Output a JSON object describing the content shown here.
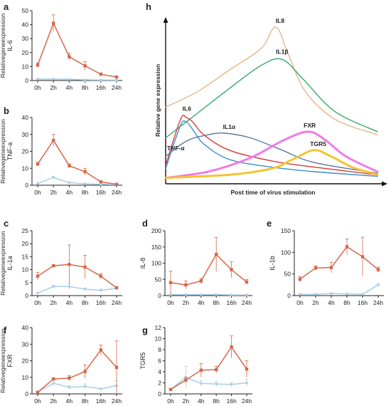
{
  "colors": {
    "treated": "#d4694a",
    "control": "#a9cfe6",
    "axis": "#222222",
    "IL8": "#e8b48a",
    "IL1b": "#3aaa6a",
    "IL6": "#d63b36",
    "TNFa": "#3e8fc4",
    "IL1a": "#5a78a8",
    "FXR": "#f07be6",
    "TGR5": "#f4c430"
  },
  "chart_data": [
    {
      "id": "a",
      "type": "line",
      "panel_label": "a",
      "ylabel": "IL-6",
      "ylabel2": "Relativegeneexpression",
      "categories": [
        "0h",
        "2h",
        "4h",
        "8h",
        "16h",
        "24h"
      ],
      "ylim": [
        0,
        50
      ],
      "yticks": [
        0,
        10,
        20,
        30,
        40,
        50
      ],
      "series": [
        {
          "role": "treated",
          "values": [
            11,
            41,
            17,
            10.5,
            4.5,
            2.5
          ],
          "errors": [
            1.5,
            6,
            2.5,
            3,
            1,
            0.6
          ]
        },
        {
          "role": "control",
          "values": [
            1,
            1,
            0.8,
            0.5,
            0.4,
            0.3
          ],
          "errors": [
            0.3,
            0.3,
            0.3,
            0.2,
            0.2,
            0.1
          ]
        }
      ]
    },
    {
      "id": "b",
      "type": "line",
      "panel_label": "b",
      "ylabel": "TNF-a",
      "ylabel2": "Relativegeneexpression",
      "categories": [
        "0h",
        "2h",
        "4h",
        "8h",
        "16h",
        "24h"
      ],
      "ylim": [
        0,
        40
      ],
      "yticks": [
        0,
        10,
        20,
        30,
        40
      ],
      "series": [
        {
          "role": "treated",
          "values": [
            12.5,
            26.5,
            11.5,
            8,
            2,
            0.5
          ],
          "errors": [
            1,
            3.5,
            1,
            2,
            0.5,
            0.3
          ]
        },
        {
          "role": "control",
          "values": [
            1,
            4.5,
            1.5,
            0.8,
            0.5,
            0.3
          ],
          "errors": [
            0.3,
            0.8,
            0.5,
            0.3,
            0.2,
            0.1
          ]
        }
      ]
    },
    {
      "id": "c",
      "type": "line",
      "panel_label": "c",
      "ylabel": "IL-1a",
      "ylabel2": "Relativegeneexpression",
      "categories": [
        "0h",
        "2h",
        "4h",
        "8h",
        "16h",
        "24h"
      ],
      "ylim": [
        0,
        25
      ],
      "yticks": [
        0,
        5,
        10,
        15,
        20,
        25
      ],
      "series": [
        {
          "role": "treated",
          "values": [
            7.5,
            11.5,
            12,
            11,
            7.5,
            3
          ],
          "errors": [
            1.5,
            0.5,
            7.5,
            4.5,
            1,
            0.5
          ]
        },
        {
          "role": "control",
          "values": [
            1,
            3.5,
            3.5,
            2.5,
            2,
            2.8
          ],
          "errors": [
            0.3,
            0.5,
            1,
            0.5,
            0.5,
            0.5
          ]
        }
      ]
    },
    {
      "id": "d",
      "type": "line",
      "panel_label": "d",
      "ylabel": "IL-8",
      "ylabel2": "",
      "categories": [
        "0h",
        "2h",
        "4h",
        "8h",
        "16h",
        "24h"
      ],
      "ylim": [
        0,
        200
      ],
      "yticks": [
        0,
        50,
        100,
        150,
        200
      ],
      "series": [
        {
          "role": "treated",
          "values": [
            40,
            33,
            45,
            127,
            80,
            42
          ],
          "errors": [
            35,
            12,
            8,
            52,
            25,
            8
          ]
        },
        {
          "role": "control",
          "values": [
            3,
            3,
            3,
            3,
            2,
            2
          ],
          "errors": [
            1,
            1,
            1,
            1,
            1,
            1
          ]
        }
      ]
    },
    {
      "id": "e",
      "type": "line",
      "panel_label": "e",
      "ylabel": "IL-1b",
      "ylabel2": "",
      "categories": [
        "0h",
        "2h",
        "4h",
        "8h",
        "16h",
        "24h"
      ],
      "ylim": [
        0,
        150
      ],
      "yticks": [
        0,
        50,
        100,
        150
      ],
      "series": [
        {
          "role": "treated",
          "values": [
            38,
            64,
            65,
            113,
            90,
            60
          ],
          "errors": [
            6,
            5,
            12,
            18,
            45,
            6
          ]
        },
        {
          "role": "control",
          "values": [
            3,
            3,
            5,
            4,
            3,
            25
          ],
          "errors": [
            1,
            1,
            1,
            1,
            1,
            2
          ]
        }
      ]
    },
    {
      "id": "f",
      "type": "line",
      "panel_label": "f",
      "ylabel": "FXR",
      "ylabel2": "Relativegeneexpression",
      "categories": [
        "0h",
        "2h",
        "4h",
        "8h",
        "16h",
        "24h"
      ],
      "ylim": [
        0,
        40
      ],
      "yticks": [
        0,
        10,
        20,
        30,
        40
      ],
      "series": [
        {
          "role": "treated",
          "values": [
            1,
            9,
            9.5,
            13.5,
            26.5,
            16
          ],
          "errors": [
            0.5,
            0.8,
            1.5,
            4,
            3,
            16
          ]
        },
        {
          "role": "control",
          "values": [
            1,
            6.5,
            4,
            4.5,
            3,
            5
          ],
          "errors": [
            0.3,
            2,
            1,
            1.5,
            0.5,
            3
          ]
        }
      ]
    },
    {
      "id": "g",
      "type": "line",
      "panel_label": "g",
      "ylabel": "TGR5",
      "ylabel2": "",
      "categories": [
        "0h",
        "2h",
        "4h",
        "8h",
        "16h",
        "24h"
      ],
      "ylim": [
        0,
        12
      ],
      "yticks": [
        0,
        2,
        4,
        6,
        8,
        10,
        12
      ],
      "series": [
        {
          "role": "treated",
          "values": [
            0.8,
            2.5,
            4.3,
            4.4,
            8.5,
            4.5
          ],
          "errors": [
            0.2,
            0.5,
            1.2,
            0.6,
            2,
            1.5
          ]
        },
        {
          "role": "control",
          "values": [
            0.8,
            3,
            1.9,
            1.8,
            1.7,
            2
          ],
          "errors": [
            0.2,
            2,
            0.5,
            0.4,
            0.3,
            0.6
          ]
        }
      ]
    },
    {
      "id": "h",
      "type": "line",
      "panel_label": "h",
      "xlabel": "Post time of virus stimulation",
      "ylabel": "Relative gene expression",
      "curves": [
        {
          "name": "IL8",
          "key": "IL8",
          "x": [
            0,
            0.15,
            0.3,
            0.45,
            0.52,
            0.58,
            0.66,
            0.8,
            1
          ],
          "y": [
            0.48,
            0.58,
            0.72,
            0.86,
            1.0,
            0.82,
            0.58,
            0.4,
            0.3
          ]
        },
        {
          "name": "IL1β",
          "key": "IL1b",
          "x": [
            0,
            0.15,
            0.3,
            0.45,
            0.55,
            0.65,
            0.8,
            1
          ],
          "y": [
            0.28,
            0.44,
            0.6,
            0.75,
            0.79,
            0.66,
            0.45,
            0.32
          ]
        },
        {
          "name": "IL6",
          "key": "IL6",
          "x": [
            0,
            0.07,
            0.1,
            0.13,
            0.18,
            0.3,
            0.5,
            0.7,
            1
          ],
          "y": [
            0.1,
            0.4,
            0.41,
            0.38,
            0.3,
            0.2,
            0.13,
            0.09,
            0.04
          ]
        },
        {
          "name": "TNF-α",
          "key": "TNFa",
          "x": [
            0,
            0.07,
            0.1,
            0.13,
            0.18,
            0.3,
            0.5,
            0.7,
            1
          ],
          "y": [
            0.08,
            0.36,
            0.38,
            0.33,
            0.24,
            0.14,
            0.09,
            0.06,
            0.03
          ]
        },
        {
          "name": "IL1α",
          "key": "IL1a",
          "x": [
            0,
            0.1,
            0.2,
            0.28,
            0.4,
            0.55,
            0.7,
            1
          ],
          "y": [
            0.16,
            0.26,
            0.3,
            0.31,
            0.28,
            0.2,
            0.12,
            0.05
          ]
        },
        {
          "name": "FXR",
          "key": "FXR",
          "x": [
            0,
            0.2,
            0.4,
            0.55,
            0.67,
            0.75,
            0.85,
            1
          ],
          "y": [
            0.02,
            0.06,
            0.15,
            0.26,
            0.32,
            0.27,
            0.16,
            0.06
          ]
        },
        {
          "name": "TGR5",
          "key": "TGR5",
          "x": [
            0,
            0.3,
            0.5,
            0.6,
            0.7,
            0.78,
            0.88,
            1
          ],
          "y": [
            0.02,
            0.04,
            0.08,
            0.14,
            0.2,
            0.16,
            0.09,
            0.04
          ]
        }
      ]
    }
  ]
}
